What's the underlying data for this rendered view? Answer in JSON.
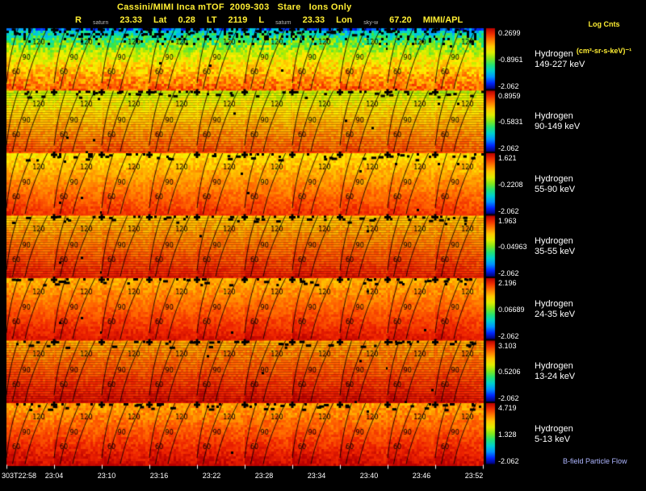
{
  "header": {
    "title": "Cassini/MIMI Inca mTOF  2009-303   Stare   Ions Only",
    "log_units_1": "Log Cnts",
    "log_units_2": "(cm²-sr-s-keV)⁻¹",
    "line2": [
      {
        "text": "R",
        "size": "big"
      },
      {
        "text": "saturn",
        "size": "small"
      },
      {
        "text": "23.33",
        "size": "big"
      },
      {
        "text": "Lat",
        "size": "big"
      },
      {
        "text": "0.28",
        "size": "big"
      },
      {
        "text": "LT",
        "size": "big"
      },
      {
        "text": "2119",
        "size": "big"
      },
      {
        "text": "L",
        "size": "big"
      },
      {
        "text": "saturn",
        "size": "small"
      },
      {
        "text": "23.33",
        "size": "big"
      },
      {
        "text": "Lon",
        "size": "big"
      },
      {
        "text": "sky-w",
        "size": "small"
      },
      {
        "text": "67.20",
        "size": "big"
      },
      {
        "text": "MIMI/APL",
        "size": "big"
      }
    ]
  },
  "rows": [
    {
      "species": "Hydrogen",
      "band": "149-227 keV",
      "cb_max": "0.2699",
      "cb_mid": "-0.8961",
      "cb_min": "-2.062"
    },
    {
      "species": "Hydrogen",
      "band": "90-149 keV",
      "cb_max": "0.8959",
      "cb_mid": "-0.5831",
      "cb_min": "-2.062"
    },
    {
      "species": "Hydrogen",
      "band": "55-90 keV",
      "cb_max": "1.621",
      "cb_mid": "-0.2208",
      "cb_min": "-2.062"
    },
    {
      "species": "Hydrogen",
      "band": "35-55 keV",
      "cb_max": "1.963",
      "cb_mid": "-0.04963",
      "cb_min": "-2.062"
    },
    {
      "species": "Hydrogen",
      "band": "24-35 keV",
      "cb_max": "2.196",
      "cb_mid": "0.06689",
      "cb_min": "-2.062"
    },
    {
      "species": "Hydrogen",
      "band": "13-24 keV",
      "cb_max": "3.103",
      "cb_mid": "0.5206",
      "cb_min": "-2.062"
    },
    {
      "species": "Hydrogen",
      "band": "5-13 keV",
      "cb_max": "4.719",
      "cb_mid": "1.328",
      "cb_min": "-2.062"
    }
  ],
  "time_labels": [
    "303T22:58",
    "23:04",
    "23:10",
    "23:16",
    "23:22",
    "23:28",
    "23:34",
    "23:40",
    "23:46",
    "23:52"
  ],
  "contour_labels": [
    "60",
    "90",
    "120"
  ],
  "footer": {
    "note": "B-field Particle Flow"
  },
  "chart_data": {
    "type": "heatmap",
    "title": "Cassini/MIMI Inca mTOF 2009-303 Stare Ions Only",
    "colorbar_label": "Log Cnts (cm²-sr-s-keV)⁻¹",
    "x": [
      "303T22:58",
      "23:04",
      "23:10",
      "23:16",
      "23:22",
      "23:28",
      "23:34",
      "23:40",
      "23:46",
      "23:52"
    ],
    "rows": [
      {
        "name": "Hydrogen 149-227 keV",
        "scale_max": 0.2699,
        "scale_mid": -0.8961,
        "scale_min": -2.062
      },
      {
        "name": "Hydrogen 90-149 keV",
        "scale_max": 0.8959,
        "scale_mid": -0.5831,
        "scale_min": -2.062
      },
      {
        "name": "Hydrogen 55-90 keV",
        "scale_max": 1.621,
        "scale_mid": -0.2208,
        "scale_min": -2.062
      },
      {
        "name": "Hydrogen 35-55 keV",
        "scale_max": 1.963,
        "scale_mid": -0.04963,
        "scale_min": -2.062
      },
      {
        "name": "Hydrogen 24-35 keV",
        "scale_max": 2.196,
        "scale_mid": 0.06689,
        "scale_min": -2.062
      },
      {
        "name": "Hydrogen 13-24 keV",
        "scale_max": 3.103,
        "scale_mid": 0.5206,
        "scale_min": -2.062
      },
      {
        "name": "Hydrogen 5-13 keV",
        "scale_max": 4.719,
        "scale_mid": 1.328,
        "scale_min": -2.062
      }
    ],
    "pitch_angle_contours": [
      60,
      90,
      120
    ],
    "grid": "7 energy rows x 10 time columns of INCA stare sky images; each panel shades from low counts (blue/cyan, top of top row) to high counts (orange/dark red, lower rows), rainbow colorbar per row",
    "ephemeris": {
      "R": 23.33,
      "Lat": 0.28,
      "LT": 2119,
      "L": 23.33,
      "Lon": 67.2
    },
    "legend_position": "right",
    "colors": {
      "background": "#000000",
      "annotation": "#ffee33",
      "tick_text": "#ffffff",
      "contour": "#000000"
    }
  }
}
